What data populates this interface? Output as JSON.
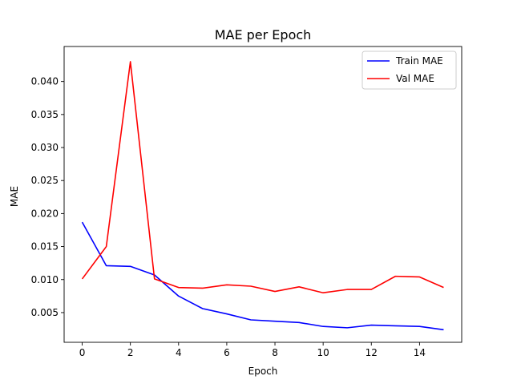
{
  "chart_data": {
    "type": "line",
    "title": "MAE per Epoch",
    "xlabel": "Epoch",
    "ylabel": "MAE",
    "x": [
      0,
      1,
      2,
      3,
      4,
      5,
      6,
      7,
      8,
      9,
      10,
      11,
      12,
      13,
      14,
      15
    ],
    "xlim": [
      -0.75,
      15.75
    ],
    "ylim": [
      0.0005,
      0.0453
    ],
    "xticks": [
      0,
      2,
      4,
      6,
      8,
      10,
      12,
      14
    ],
    "yticks": [
      0.005,
      0.01,
      0.015,
      0.02,
      0.025,
      0.03,
      0.035,
      0.04
    ],
    "xtick_labels": [
      "0",
      "2",
      "4",
      "6",
      "8",
      "10",
      "12",
      "14"
    ],
    "ytick_labels": [
      "0.005",
      "0.010",
      "0.015",
      "0.020",
      "0.025",
      "0.030",
      "0.035",
      "0.040"
    ],
    "grid": false,
    "legend_position": "top-right",
    "series": [
      {
        "name": "Train MAE",
        "color": "#0000ff",
        "values": [
          0.0187,
          0.0121,
          0.012,
          0.0107,
          0.0075,
          0.0056,
          0.0048,
          0.0039,
          0.0037,
          0.0035,
          0.0029,
          0.0027,
          0.0031,
          0.003,
          0.0029,
          0.0024
        ]
      },
      {
        "name": "Val MAE",
        "color": "#ff0000",
        "values": [
          0.0101,
          0.015,
          0.043,
          0.0101,
          0.0088,
          0.0087,
          0.0092,
          0.009,
          0.0082,
          0.0089,
          0.008,
          0.0085,
          0.0085,
          0.0105,
          0.0104,
          0.0088
        ]
      }
    ]
  }
}
